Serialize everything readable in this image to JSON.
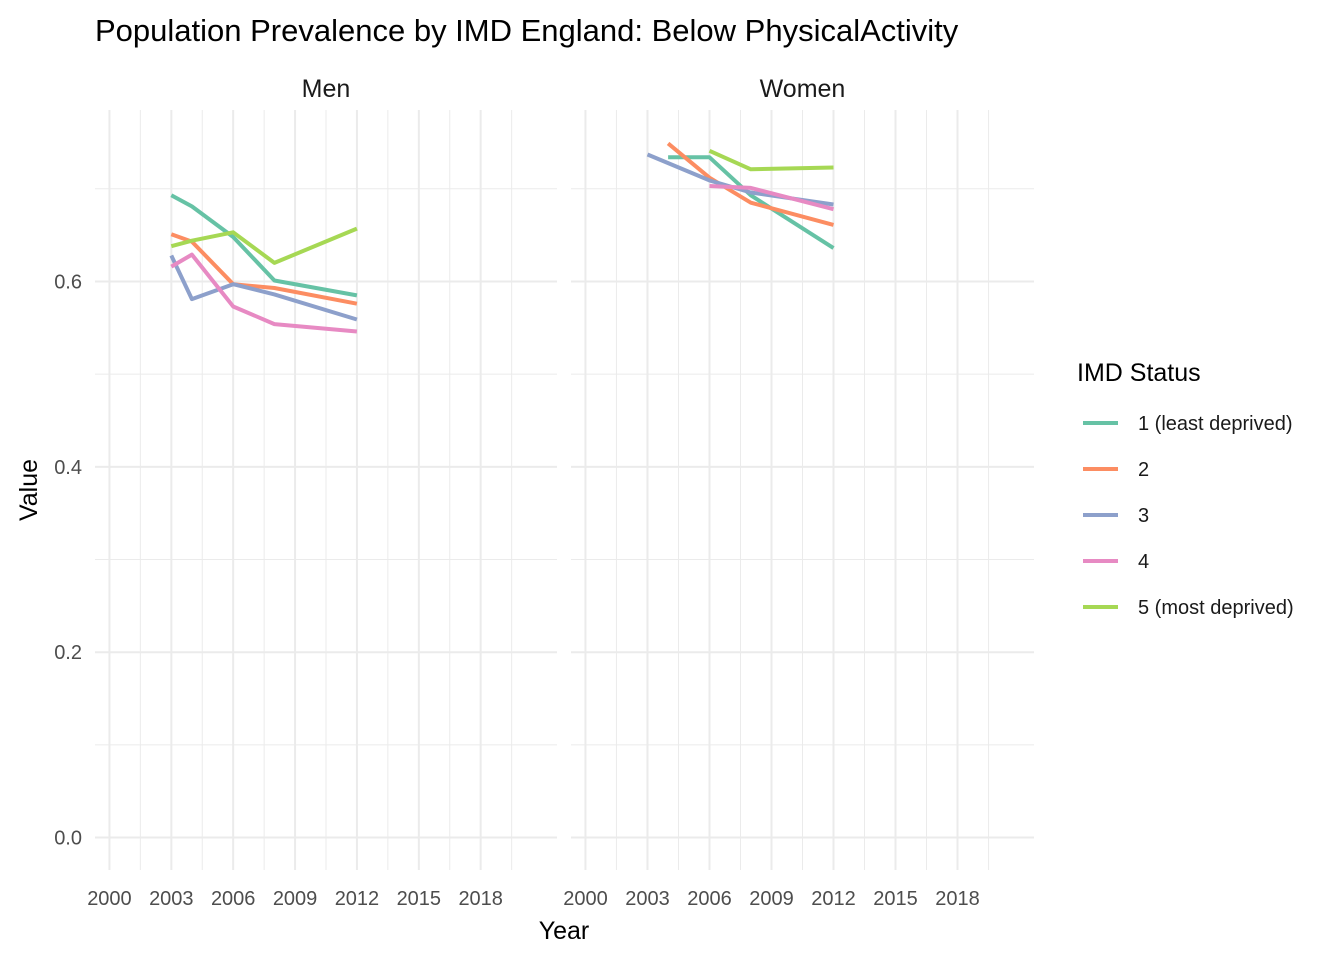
{
  "chart_data": {
    "type": "line",
    "title": "Population Prevalence by IMD England: Below PhysicalActivity",
    "xlabel": "Year",
    "ylabel": "Value",
    "x_ticks": [
      2000,
      2003,
      2006,
      2009,
      2012,
      2015,
      2018
    ],
    "x_range": [
      1999.3,
      2021.7
    ],
    "y_ticks": [
      0.0,
      0.2,
      0.4,
      0.6
    ],
    "y_tick_labels": [
      "0.0",
      "0.2",
      "0.4",
      "0.6"
    ],
    "y_range": [
      -0.035,
      0.785
    ],
    "grid": true,
    "legend": {
      "title": "IMD Status",
      "position": "right"
    },
    "series_styles": [
      {
        "name": "1 (least deprived)",
        "color": "#66C2A5"
      },
      {
        "name": "2",
        "color": "#FC8D62"
      },
      {
        "name": "3",
        "color": "#8DA0CB"
      },
      {
        "name": "4",
        "color": "#E78AC3"
      },
      {
        "name": "5 (most deprived)",
        "color": "#A6D854"
      }
    ],
    "facets": [
      {
        "label": "Men",
        "series": [
          {
            "name": "1 (least deprived)",
            "x": [
              2003,
              2004,
              2006,
              2008,
              2012
            ],
            "y": [
              0.693,
              0.681,
              0.648,
              0.601,
              0.585
            ]
          },
          {
            "name": "2",
            "x": [
              2003,
              2004,
              2006,
              2008,
              2012
            ],
            "y": [
              0.651,
              0.643,
              0.597,
              0.593,
              0.576
            ]
          },
          {
            "name": "3",
            "x": [
              2003,
              2004,
              2006,
              2008,
              2012
            ],
            "y": [
              0.628,
              0.581,
              0.597,
              0.586,
              0.559
            ]
          },
          {
            "name": "4",
            "x": [
              2003,
              2004,
              2006,
              2008,
              2012
            ],
            "y": [
              0.616,
              0.629,
              0.573,
              0.554,
              0.546
            ]
          },
          {
            "name": "5 (most deprived)",
            "x": [
              2003,
              2004,
              2006,
              2008,
              2012
            ],
            "y": [
              0.638,
              0.644,
              0.653,
              0.62,
              0.657
            ]
          }
        ]
      },
      {
        "label": "Women",
        "series": [
          {
            "name": "1 (least deprived)",
            "x": [
              2004,
              2006,
              2008,
              2012
            ],
            "y": [
              0.734,
              0.734,
              0.693,
              0.636
            ]
          },
          {
            "name": "2",
            "x": [
              2004,
              2006,
              2008,
              2012
            ],
            "y": [
              0.749,
              0.712,
              0.685,
              0.661
            ]
          },
          {
            "name": "3",
            "x": [
              2003,
              2006,
              2008,
              2012
            ],
            "y": [
              0.737,
              0.709,
              0.696,
              0.683
            ]
          },
          {
            "name": "4",
            "x": [
              2006,
              2008,
              2012
            ],
            "y": [
              0.703,
              0.701,
              0.678
            ]
          },
          {
            "name": "5 (most deprived)",
            "x": [
              2006,
              2008,
              2012
            ],
            "y": [
              0.741,
              0.721,
              0.723
            ]
          }
        ]
      }
    ]
  }
}
